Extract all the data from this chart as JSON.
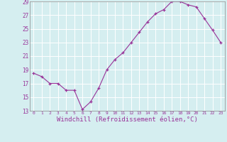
{
  "x": [
    0,
    1,
    2,
    3,
    4,
    5,
    6,
    7,
    8,
    9,
    10,
    11,
    12,
    13,
    14,
    15,
    16,
    17,
    18,
    19,
    20,
    21,
    22,
    23
  ],
  "y": [
    18.5,
    18.0,
    17.0,
    17.0,
    16.0,
    16.0,
    13.2,
    14.3,
    16.3,
    19.0,
    20.5,
    21.5,
    23.0,
    24.5,
    26.0,
    27.2,
    27.8,
    29.0,
    29.0,
    28.5,
    28.2,
    26.5,
    24.8,
    23.0
  ],
  "line_color": "#993399",
  "marker": "+",
  "marker_size": 3.5,
  "xlabel": "Windchill (Refroidissement éolien,°C)",
  "xlabel_fontsize": 6.5,
  "bg_color": "#d5eef0",
  "grid_color": "#b8d8dc",
  "tick_color": "#993399",
  "text_color": "#993399",
  "ylim": [
    13,
    29
  ],
  "yticks": [
    13,
    15,
    17,
    19,
    21,
    23,
    25,
    27,
    29
  ],
  "xlim": [
    -0.5,
    23.5
  ],
  "xticks": [
    0,
    1,
    2,
    3,
    4,
    5,
    6,
    7,
    8,
    9,
    10,
    11,
    12,
    13,
    14,
    15,
    16,
    17,
    18,
    19,
    20,
    21,
    22,
    23
  ],
  "xtick_labels": [
    "0",
    "1",
    "2",
    "3",
    "4",
    "5",
    "6",
    "7",
    "8",
    "9",
    "10",
    "11",
    "12",
    "13",
    "14",
    "15",
    "16",
    "17",
    "18",
    "19",
    "20",
    "21",
    "22",
    "23"
  ],
  "ytick_labels": [
    "13",
    "15",
    "17",
    "19",
    "21",
    "23",
    "25",
    "27",
    "29"
  ]
}
